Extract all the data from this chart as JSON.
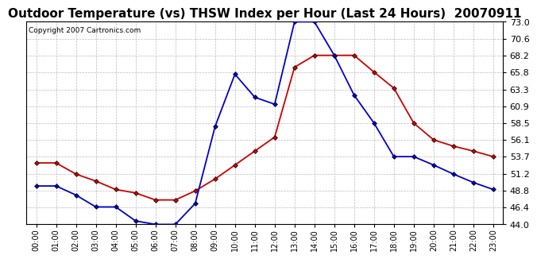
{
  "title": "Outdoor Temperature (vs) THSW Index per Hour (Last 24 Hours)  20070911",
  "copyright": "Copyright 2007 Cartronics.com",
  "hours": [
    0,
    1,
    2,
    3,
    4,
    5,
    6,
    7,
    8,
    9,
    10,
    11,
    12,
    13,
    14,
    15,
    16,
    17,
    18,
    19,
    20,
    21,
    22,
    23
  ],
  "temp": [
    52.8,
    52.8,
    51.2,
    50.2,
    49.0,
    48.5,
    47.5,
    47.5,
    48.8,
    50.5,
    52.5,
    54.5,
    56.5,
    66.5,
    68.2,
    68.2,
    68.2,
    65.8,
    63.5,
    58.5,
    56.1,
    55.2,
    54.5,
    53.7
  ],
  "thsw": [
    49.5,
    49.5,
    48.2,
    46.5,
    46.5,
    44.5,
    44.0,
    44.0,
    47.0,
    58.0,
    65.5,
    62.2,
    61.2,
    73.0,
    73.0,
    68.2,
    62.5,
    58.5,
    53.7,
    53.7,
    52.5,
    51.2,
    50.0,
    49.0
  ],
  "temp_color": "#cc0000",
  "thsw_color": "#0000cc",
  "bg_color": "#ffffff",
  "grid_color": "#bbbbbb",
  "ylim_min": 44.0,
  "ylim_max": 73.0,
  "yticks": [
    44.0,
    46.4,
    48.8,
    51.2,
    53.7,
    56.1,
    58.5,
    60.9,
    63.3,
    65.8,
    68.2,
    70.6,
    73.0
  ],
  "hour_labels": [
    "00:00",
    "01:00",
    "02:00",
    "03:00",
    "04:00",
    "05:00",
    "06:00",
    "07:00",
    "08:00",
    "09:00",
    "10:00",
    "11:00",
    "12:00",
    "13:00",
    "14:00",
    "15:00",
    "16:00",
    "17:00",
    "18:00",
    "19:00",
    "20:00",
    "21:00",
    "22:00",
    "23:00"
  ],
  "title_fontsize": 11,
  "copyright_fontsize": 6.5,
  "tick_fontsize": 7,
  "ytick_fontsize": 8,
  "marker": "D",
  "marker_size": 3,
  "linewidth": 1.3
}
